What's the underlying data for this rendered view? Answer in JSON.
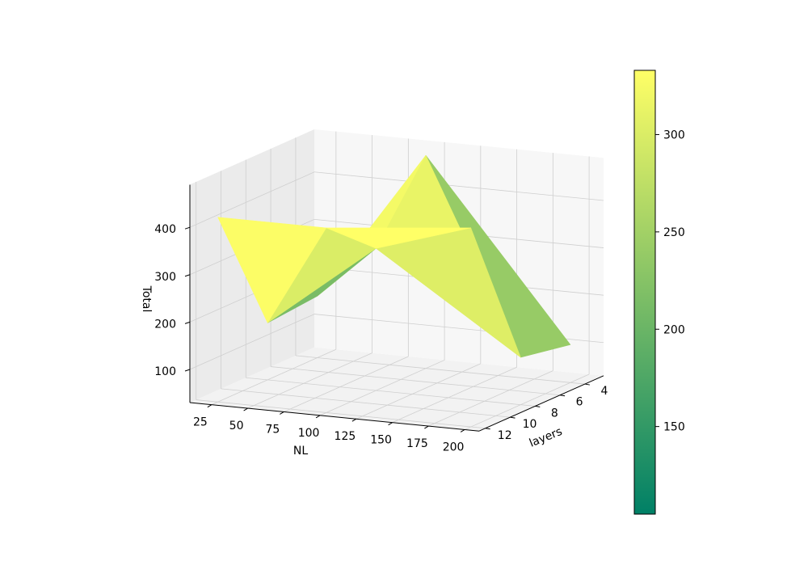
{
  "chart_data": {
    "type": "surface3d",
    "title": "",
    "xlabel": "NL",
    "ylabel": "layers",
    "zlabel": "Total",
    "x": [
      25,
      100,
      200
    ],
    "y": [
      4,
      8,
      12
    ],
    "z": [
      [
        160,
        480,
        110
      ],
      [
        150,
        330,
        130
      ],
      [
        420,
        420,
        450
      ]
    ],
    "xticks": [
      "25",
      "50",
      "75",
      "100",
      "125",
      "150",
      "175",
      "200"
    ],
    "yticks": [
      "4",
      "6",
      "8",
      "10",
      "12"
    ],
    "zticks": [
      "100",
      "200",
      "300",
      "400"
    ],
    "xlim": [
      10,
      210
    ],
    "ylim": [
      2.5,
      12.5
    ],
    "zlim": [
      30,
      490
    ],
    "grid": true,
    "colormap": "summer",
    "colorbar": {
      "min": 105,
      "max": 333,
      "ticks": [
        "150",
        "200",
        "250",
        "300"
      ],
      "colors": [
        "#008066",
        "#ffff66"
      ]
    }
  }
}
